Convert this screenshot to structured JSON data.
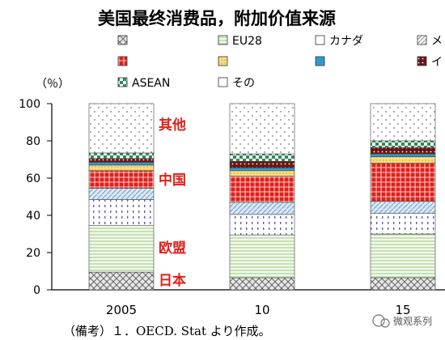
{
  "chart_data": {
    "type": "bar",
    "stacked": true,
    "title": "美国最终消费品，附加价值来源",
    "ylabel": "（％）",
    "ylim": [
      0,
      100
    ],
    "yticks": [
      "0",
      "20",
      "40",
      "60",
      "80",
      "100"
    ],
    "categories": [
      "2005",
      "10",
      "15"
    ],
    "series": [
      {
        "name": "",
        "values": [
          9.5,
          6.5,
          6.5
        ],
        "color": "#555555",
        "pattern": "crosshatch"
      },
      {
        "name": "EU28",
        "values": [
          25,
          23,
          23.5
        ],
        "color": "#c5e0a5",
        "pattern": "hlines-green"
      },
      {
        "name": "",
        "values": [
          14,
          11,
          11
        ],
        "color": "#7b6db0",
        "pattern": "vdots-purple"
      },
      {
        "name": "",
        "values": [
          6,
          6.5,
          6.5
        ],
        "color": "#9ec3e0",
        "pattern": "diag-blue"
      },
      {
        "name": "",
        "values": [
          9.5,
          14,
          20.5
        ],
        "color": "#e0201b",
        "pattern": "grid-red"
      },
      {
        "name": "",
        "values": [
          3,
          3,
          3.5
        ],
        "color": "#f2cf66",
        "pattern": "dots-yellow"
      },
      {
        "name": "",
        "values": [
          1.5,
          1.5,
          1.5
        ],
        "color": "#2e9ad0",
        "pattern": "solid-blue"
      },
      {
        "name": "イ…",
        "values": [
          2,
          3.5,
          3.5
        ],
        "color": "#7a1a1a",
        "pattern": "dots-darkred"
      },
      {
        "name": "ASEAN",
        "values": [
          3,
          4,
          3.5
        ],
        "color": "#2e8b57",
        "pattern": "checker-green"
      },
      {
        "name": "その",
        "values": [
          26.5,
          27,
          20
        ],
        "color": "#ffffff",
        "pattern": "dots-sparse"
      }
    ],
    "legend_position": "top",
    "grid": false
  },
  "legend": {
    "items": [
      {
        "label": "",
        "pattern": "crosshatch"
      },
      {
        "label": "EU28",
        "pattern": "hlines-green"
      },
      {
        "label": "カナダ",
        "pattern": "none"
      },
      {
        "label": "メ",
        "pattern": "diag-gray"
      },
      {
        "label": "",
        "pattern": "grid-red"
      },
      {
        "label": "",
        "pattern": "dots-yellow"
      },
      {
        "label": "",
        "pattern": "solid-blue"
      },
      {
        "label": "イ",
        "pattern": "dots-darkred"
      },
      {
        "label": "ASEAN",
        "pattern": "checker-green"
      },
      {
        "label": "その",
        "pattern": "none"
      }
    ]
  },
  "annotations": [
    {
      "text": "其他"
    },
    {
      "text": "中国"
    },
    {
      "text": "欧盟"
    },
    {
      "text": "日本"
    }
  ],
  "note": "（備考）１．OECD. Stat より作成。",
  "watermark": "微观系列"
}
